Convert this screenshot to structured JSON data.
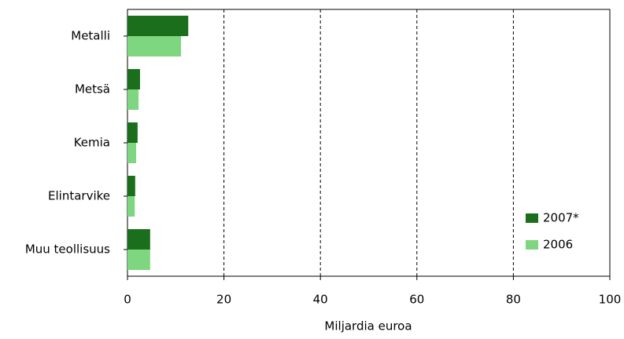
{
  "chart_data": {
    "type": "barh",
    "categories": [
      "Metalli",
      "Metsä",
      "Kemia",
      "Elintarvike",
      "Muu teollisuus"
    ],
    "series": [
      {
        "name": "2007*",
        "color": "#1b6e1b",
        "values": [
          12.6,
          2.6,
          2.1,
          1.6,
          4.7
        ]
      },
      {
        "name": "2006",
        "color": "#7fd680",
        "values": [
          11.1,
          2.3,
          1.8,
          1.5,
          4.7
        ]
      }
    ],
    "xlabel": "Miljardia euroa",
    "xlim": [
      0,
      100
    ],
    "xticks": [
      0,
      20,
      40,
      60,
      80,
      100
    ],
    "grid": true,
    "legend": "lower right"
  }
}
